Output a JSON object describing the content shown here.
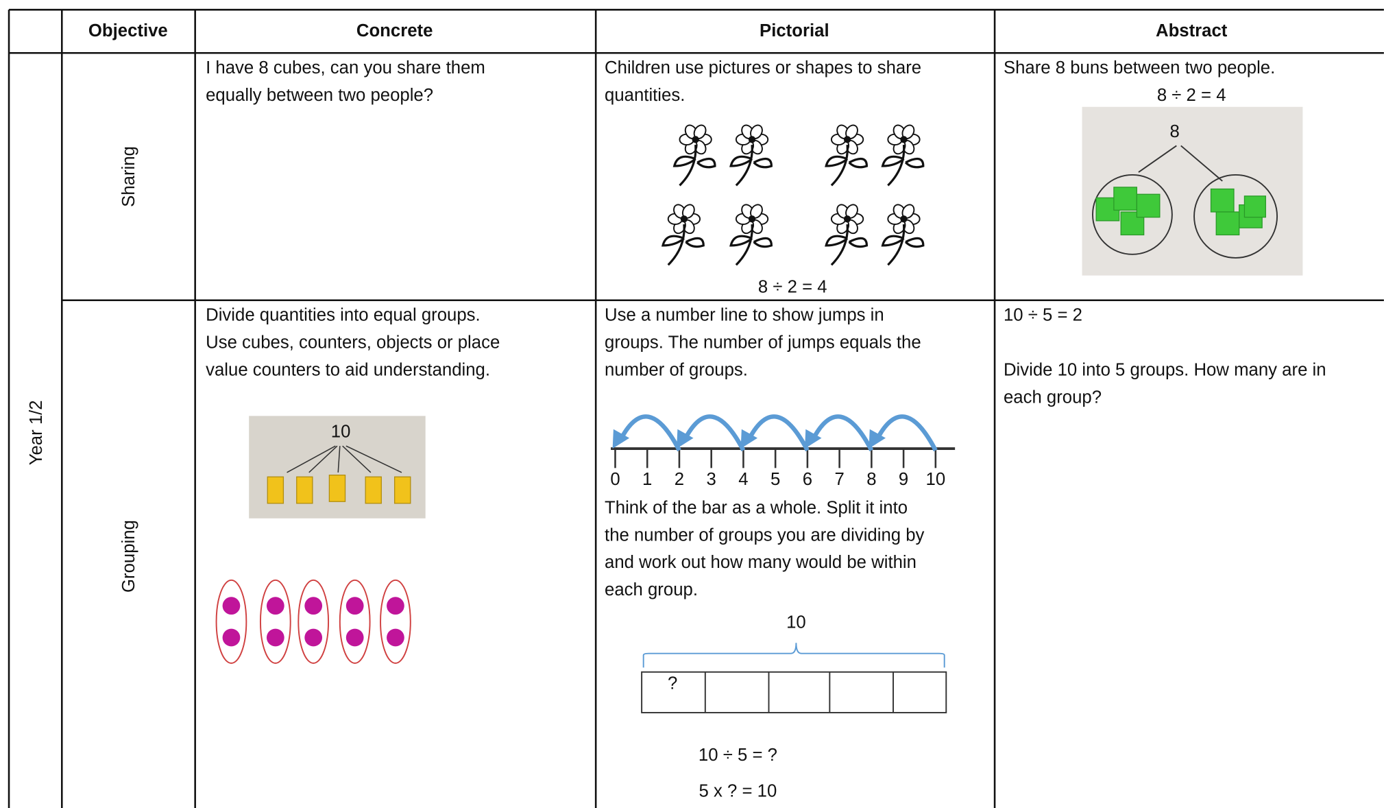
{
  "header": {
    "columns": [
      "Objective",
      "Concrete",
      "Pictorial",
      "Abstract"
    ]
  },
  "year": "Year 1/2",
  "rows": [
    {
      "objective": "Sharing",
      "concrete": [
        "I have 8 cubes, can you share them",
        "equally between two people?"
      ],
      "pictorial": [
        "Children use pictures or shapes to share",
        "quantities."
      ],
      "pictorial_caption": "8 ÷ 2 = 4",
      "abstract": [
        "Share 8 buns between two people."
      ],
      "abstract_equation": "8 ÷ 2 = 4",
      "photo_label": "8"
    },
    {
      "objective": "Grouping",
      "concrete": [
        "Divide quantities into equal groups.",
        "Use cubes, counters, objects or place",
        "value counters to aid understanding."
      ],
      "photo_label": "10",
      "pictorial": [
        "Use a number line to show jumps in",
        "groups. The number of jumps equals the",
        "number of groups."
      ],
      "number_line": [
        0,
        1,
        2,
        3,
        4,
        5,
        6,
        7,
        8,
        9,
        10
      ],
      "pictorial_bar": [
        "Think of the bar as a whole. Split it into",
        "the number of groups you are dividing by",
        "and work out how many would be within",
        "each group."
      ],
      "bar_total": "10",
      "bar_unknown": "?",
      "equations": [
        "10 ÷ 5 = ?",
        "5 x ? = 10"
      ],
      "abstract": [
        "10 ÷ 5 = 2"
      ],
      "abstract_question": [
        "Divide 10 into 5 groups. How many are in",
        "each group?"
      ]
    }
  ]
}
